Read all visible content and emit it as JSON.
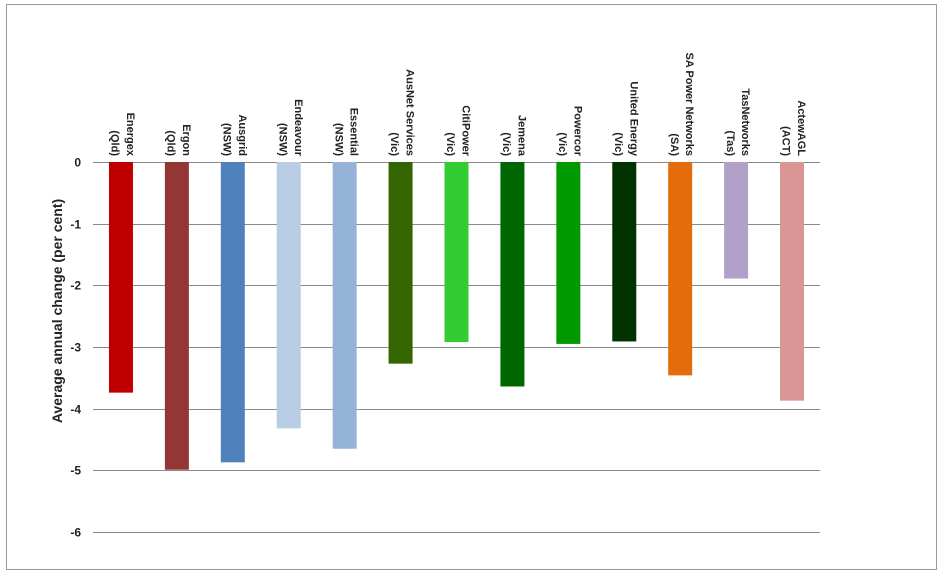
{
  "chart_data": {
    "type": "bar",
    "ylabel": "Average annual change (per cent)",
    "ylim": [
      -6,
      0
    ],
    "yticks": [
      0,
      -1,
      -2,
      -3,
      -4,
      -5,
      -6
    ],
    "grid": true,
    "legend": "none",
    "categories": [
      {
        "lines": [
          "Energex",
          "(Qld)"
        ]
      },
      {
        "lines": [
          "Ergon",
          "(Qld)"
        ]
      },
      {
        "lines": [
          "Ausgrid",
          "(NSW)"
        ]
      },
      {
        "lines": [
          "Endeavour",
          "(NSW)"
        ]
      },
      {
        "lines": [
          "Essential",
          "(NSW)"
        ]
      },
      {
        "lines": [
          "AusNet Services",
          "(Vic)"
        ]
      },
      {
        "lines": [
          "CitiPower",
          "(Vic)"
        ]
      },
      {
        "lines": [
          "Jemena",
          "(Vic)"
        ]
      },
      {
        "lines": [
          "Powercor",
          "(Vic)"
        ]
      },
      {
        "lines": [
          "United Energy",
          "(Vic)"
        ]
      },
      {
        "lines": [
          "SA Power Networks",
          "(SA)"
        ]
      },
      {
        "lines": [
          "TasNetworks",
          "(Tas)"
        ]
      },
      {
        "lines": [
          "ActewAGL",
          "(ACT)"
        ]
      }
    ],
    "values": [
      -3.74,
      -4.99,
      -4.87,
      -4.32,
      -4.65,
      -3.27,
      -2.92,
      -3.64,
      -2.95,
      -2.91,
      -3.46,
      -1.89,
      -3.87
    ],
    "colors": [
      "#c00000",
      "#943634",
      "#4f81bd",
      "#b8cce4",
      "#95b3d7",
      "#336600",
      "#33cc33",
      "#006600",
      "#009900",
      "#003300",
      "#e46c0a",
      "#b1a0c7",
      "#d99694"
    ]
  }
}
